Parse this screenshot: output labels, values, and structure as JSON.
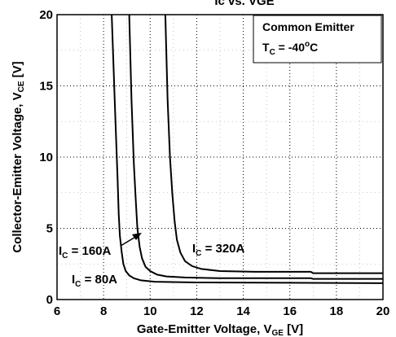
{
  "chart_data": {
    "type": "line",
    "title_fragment": "Ic vs. VGE",
    "xlabel_main": "Gate-Emitter Voltage, V",
    "xlabel_sub": "GE",
    "xlabel_unit": " [V]",
    "ylabel_main": "Collector-Emitter Voltage, V",
    "ylabel_sub": "CE",
    "ylabel_unit": " [V]",
    "xlim": [
      6,
      20
    ],
    "ylim": [
      0,
      20
    ],
    "x_ticks": [
      6,
      8,
      10,
      12,
      14,
      16,
      18,
      20
    ],
    "y_ticks": [
      0,
      5,
      10,
      15,
      20
    ],
    "grid": true,
    "legend": {
      "placement": "top-right",
      "line1": "Common Emitter",
      "tc_prefix": "T",
      "tc_sub": "C",
      "tc_eq": " = -40",
      "tc_sup": "o",
      "tc_unit": "C"
    },
    "series": [
      {
        "ann_prefix": "I",
        "ann_sub": "C",
        "ann_rest": " = 80A",
        "x": [
          8.35,
          8.5,
          8.6,
          8.65,
          8.7,
          8.78,
          8.85,
          8.95,
          9.1,
          9.3,
          9.6,
          10.2,
          12,
          16,
          20
        ],
        "y": [
          20,
          13,
          8.5,
          6,
          4.5,
          3.3,
          2.5,
          2.0,
          1.7,
          1.5,
          1.35,
          1.25,
          1.2,
          1.18,
          1.15
        ]
      },
      {
        "ann_prefix": "I",
        "ann_sub": "C",
        "ann_rest": " = 160A",
        "x": [
          9.1,
          9.2,
          9.3,
          9.38,
          9.45,
          9.55,
          9.65,
          9.8,
          10.0,
          10.3,
          10.7,
          11.5,
          13,
          16.9,
          17.0,
          20
        ],
        "y": [
          20,
          14,
          9.5,
          7,
          5,
          3.7,
          2.9,
          2.3,
          2.0,
          1.75,
          1.62,
          1.55,
          1.5,
          1.5,
          1.45,
          1.45
        ]
      },
      {
        "ann_prefix": "I",
        "ann_sub": "C",
        "ann_rest": " = 320A",
        "x": [
          10.65,
          10.75,
          10.85,
          10.95,
          11.05,
          11.15,
          11.3,
          11.5,
          11.8,
          12.2,
          13,
          14.5,
          16.9,
          17.0,
          20
        ],
        "y": [
          20,
          14,
          10,
          7.5,
          5.5,
          4.2,
          3.3,
          2.7,
          2.35,
          2.15,
          2.0,
          1.95,
          1.95,
          1.85,
          1.85
        ]
      }
    ]
  }
}
